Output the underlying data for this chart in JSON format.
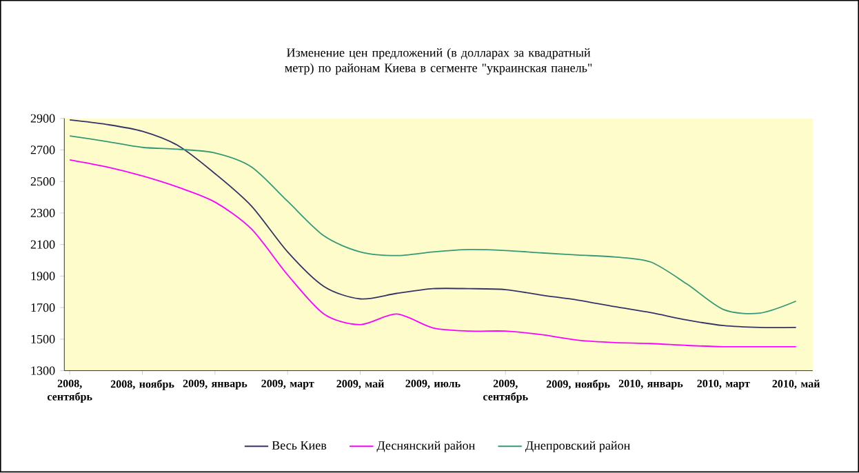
{
  "chart_data": {
    "type": "line",
    "title": "Изменение цен предложений (в долларах за квадратный метр) по районам Киева в сегменте \"украинская панель\"",
    "categories": [
      "2008, сентябрь",
      null,
      "2008, ноябрь",
      null,
      "2009, январь",
      null,
      "2009, март",
      null,
      "2009, май",
      null,
      "2009, июль",
      null,
      "2009, сентябрь",
      null,
      "2009, ноябрь",
      null,
      "2010, январь",
      null,
      "2010, март",
      null,
      "2010, май"
    ],
    "series": [
      {
        "name": "Весь Киев",
        "color": "#333366",
        "values": [
          2890,
          2862,
          2818,
          2725,
          2550,
          2345,
          2053,
          1834,
          1755,
          1790,
          1820,
          1820,
          1814,
          1779,
          1747,
          1706,
          1668,
          1621,
          1586,
          1574,
          1574
        ]
      },
      {
        "name": "Деснянский район",
        "color": "#ff00ff",
        "values": [
          2637,
          2593,
          2535,
          2462,
          2369,
          2199,
          1907,
          1659,
          1592,
          1659,
          1571,
          1551,
          1551,
          1528,
          1493,
          1478,
          1472,
          1460,
          1452,
          1452,
          1452
        ]
      },
      {
        "name": "Днепровский  район",
        "color": "#339977",
        "values": [
          2789,
          2754,
          2716,
          2704,
          2681,
          2593,
          2374,
          2155,
          2053,
          2030,
          2053,
          2068,
          2062,
          2047,
          2033,
          2021,
          1989,
          1849,
          1688,
          1665,
          1741
        ]
      }
    ],
    "ylim": [
      1300,
      2900
    ],
    "yticks": [
      1300,
      1500,
      1700,
      1900,
      2100,
      2300,
      2500,
      2700,
      2900
    ],
    "legend": "bottom",
    "marker": "none",
    "line_style": "solid",
    "grid": false
  }
}
